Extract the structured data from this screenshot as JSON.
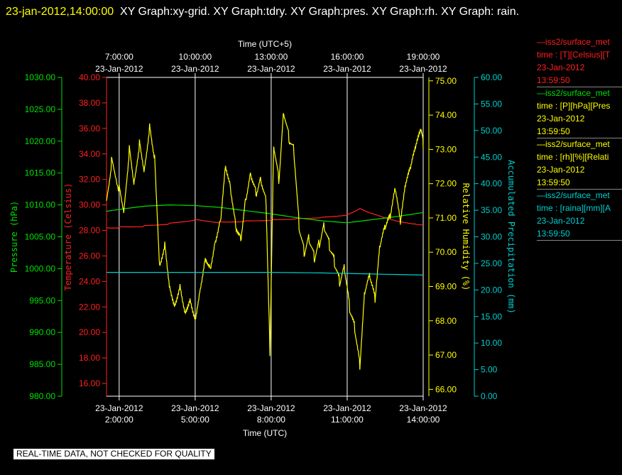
{
  "header": {
    "stamp": "23-jan-2012,14:00:00",
    "title": "XY Graph:xy-grid.  XY Graph:tdry.  XY Graph:pres.  XY Graph:rh.  XY Graph: rain."
  },
  "footer": {
    "text": "REAL-TIME DATA, NOT CHECKED FOR QUALITY"
  },
  "legend": [
    {
      "line1": "—iss2/surface_met",
      "line2": "time : [T][Celsius][T",
      "line3": "23-Jan-2012",
      "line4": "13:59:50",
      "color": "#ff2020",
      "textcolor": "#ff2020"
    },
    {
      "line1": "—iss2/surface_met",
      "line2": "time : [P][hPa][Pres",
      "line3": "23-Jan-2012",
      "line4": "13:59:50",
      "color": "#00e000",
      "textcolor": "#ffff00"
    },
    {
      "line1": "—iss2/surface_met",
      "line2": "time : [rh][%][Relati",
      "line3": "23-Jan-2012",
      "line4": "13:59:50",
      "color": "#ffff00",
      "textcolor": "#ffff00"
    },
    {
      "line1": "—iss2/surface_met",
      "line2": "time : [raina][mm][A",
      "line3": "23-Jan-2012",
      "line4": "13:59:50",
      "color": "#00d0d0",
      "textcolor": "#00d0d0"
    }
  ],
  "chart_data": {
    "type": "line",
    "grid": true,
    "x_bottom": {
      "label": "Time (UTC)",
      "range_hours": [
        1.5,
        14.0
      ],
      "ticks": [
        {
          "h": 2,
          "date": "23-Jan-2012",
          "time": "2:00:00"
        },
        {
          "h": 5,
          "date": "23-Jan-2012",
          "time": "5:00:00"
        },
        {
          "h": 8,
          "date": "23-Jan-2012",
          "time": "8:00:00"
        },
        {
          "h": 11,
          "date": "23-Jan-2012",
          "time": "11:00:00"
        },
        {
          "h": 14,
          "date": "23-Jan-2012",
          "time": "14:00:00"
        }
      ]
    },
    "x_top": {
      "label": "Time (UTC+5)",
      "ticks": [
        {
          "h": 2,
          "date": "23-Jan-2012",
          "time": "7:00:00"
        },
        {
          "h": 5,
          "date": "23-Jan-2012",
          "time": "10:00:00"
        },
        {
          "h": 8,
          "date": "23-Jan-2012",
          "time": "13:00:00"
        },
        {
          "h": 11,
          "date": "23-Jan-2012",
          "time": "16:00:00"
        },
        {
          "h": 14,
          "date": "23-Jan-2012",
          "time": "19:00:00"
        }
      ]
    },
    "axes": {
      "pressure": {
        "label": "Pressure (hPa)",
        "min": 980,
        "max": 1030,
        "color": "#00e000",
        "ticks": [
          "980.00",
          "985.00",
          "990.00",
          "995.00",
          "1000.00",
          "1005.00",
          "1010.00",
          "1015.00",
          "1020.00",
          "1025.00",
          "1030.00"
        ]
      },
      "temperature": {
        "label": "Temperature (Celsius)",
        "min": 15,
        "max": 40,
        "color": "#ff2020",
        "ticks": [
          "16.00",
          "18.00",
          "20.00",
          "22.00",
          "24.00",
          "26.00",
          "28.00",
          "30.00",
          "32.00",
          "34.00",
          "36.00",
          "38.00",
          "40.00"
        ]
      },
      "humidity": {
        "label": "Relative Humidity (%)",
        "min": 65.8,
        "max": 75.1,
        "color": "#ffff00",
        "ticks": [
          "66.00",
          "67.00",
          "68.00",
          "69.00",
          "70.00",
          "71.00",
          "72.00",
          "73.00",
          "74.00",
          "75.00"
        ]
      },
      "precip": {
        "label": "Accumulated Precipitation (mm)",
        "min": 0,
        "max": 60,
        "color": "#00d0d0",
        "ticks": [
          "0.00",
          "5.00",
          "10.00",
          "15.00",
          "20.00",
          "25.00",
          "30.00",
          "35.00",
          "40.00",
          "45.00",
          "50.00",
          "55.00",
          "60.00"
        ]
      }
    },
    "series": [
      {
        "axis": "temperature",
        "color": "#ff2020",
        "x": [
          1.5,
          2,
          3,
          4,
          5,
          6,
          7,
          8,
          9,
          10,
          11,
          11.5,
          12,
          13,
          14
        ],
        "y": [
          28.2,
          28.3,
          28.4,
          28.6,
          28.9,
          28.7,
          28.8,
          28.9,
          29.0,
          29.1,
          29.3,
          29.8,
          29.4,
          28.8,
          28.5
        ]
      },
      {
        "axis": "pressure",
        "color": "#00e000",
        "x": [
          1.5,
          2,
          3,
          4,
          5,
          6,
          7,
          8,
          9,
          10,
          11,
          12,
          13,
          14
        ],
        "y": [
          1009.0,
          1009.3,
          1009.8,
          1010.0,
          1009.9,
          1009.6,
          1009.1,
          1008.6,
          1008.0,
          1007.5,
          1007.2,
          1007.7,
          1008.2,
          1008.8
        ]
      },
      {
        "axis": "humidity",
        "color": "#ffff00",
        "x": [
          1.5,
          1.7,
          2.0,
          2.2,
          2.4,
          2.6,
          2.8,
          3.0,
          3.2,
          3.4,
          3.6,
          3.8,
          4.0,
          4.2,
          4.4,
          4.6,
          4.8,
          5.0,
          5.2,
          5.4,
          5.6,
          5.8,
          6.0,
          6.2,
          6.4,
          6.6,
          6.8,
          7.0,
          7.2,
          7.4,
          7.6,
          7.8,
          7.95,
          8.1,
          8.3,
          8.5,
          8.7,
          8.9,
          9.1,
          9.3,
          9.5,
          9.7,
          9.9,
          10.1,
          10.3,
          10.5,
          10.7,
          10.9,
          11.1,
          11.3,
          11.5,
          11.7,
          11.9,
          12.1,
          12.3,
          12.5,
          12.7,
          12.9,
          13.1,
          13.3,
          13.5,
          13.7,
          13.9,
          14.0
        ],
        "y": [
          71.5,
          72.8,
          72.0,
          71.4,
          73.2,
          72.2,
          73.4,
          72.6,
          73.9,
          73.0,
          69.8,
          70.5,
          69.2,
          68.7,
          69.3,
          68.5,
          68.9,
          68.3,
          69.2,
          70.1,
          69.8,
          70.6,
          71.2,
          72.8,
          72.1,
          71.0,
          70.6,
          71.8,
          72.5,
          71.9,
          72.3,
          71.6,
          67.2,
          73.3,
          72.2,
          74.2,
          73.4,
          73.0,
          70.8,
          70.0,
          70.4,
          69.8,
          70.2,
          70.7,
          70.1,
          69.6,
          69.0,
          69.4,
          68.2,
          67.6,
          66.5,
          68.7,
          69.1,
          68.4,
          70.0,
          70.5,
          70.8,
          71.6,
          70.6,
          71.7,
          72.2,
          72.8,
          73.3,
          73.0
        ]
      },
      {
        "axis": "precip",
        "color": "#00d0d0",
        "x": [
          1.5,
          4,
          6,
          8,
          10,
          12,
          14
        ],
        "y": [
          23.3,
          23.3,
          23.3,
          23.3,
          23.2,
          23.0,
          22.8
        ]
      }
    ]
  }
}
